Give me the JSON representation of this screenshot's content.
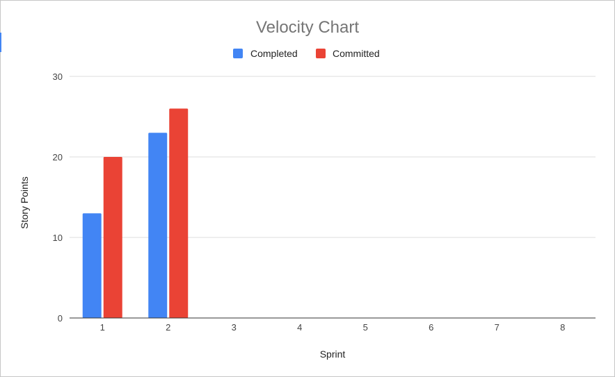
{
  "chart_data": {
    "type": "bar",
    "title": "Velocity Chart",
    "xlabel": "Sprint",
    "ylabel": "Story Points",
    "categories": [
      "1",
      "2",
      "3",
      "4",
      "5",
      "6",
      "7",
      "8"
    ],
    "series": [
      {
        "name": "Completed",
        "color": "#4285f4",
        "values": [
          13,
          23,
          0,
          0,
          0,
          0,
          0,
          0
        ]
      },
      {
        "name": "Committed",
        "color": "#ea4335",
        "values": [
          20,
          26,
          0,
          0,
          0,
          0,
          0,
          0
        ]
      }
    ],
    "ylim": [
      0,
      30
    ],
    "yticks": [
      0,
      10,
      20,
      30
    ],
    "grid": true,
    "legend_position": "top"
  }
}
